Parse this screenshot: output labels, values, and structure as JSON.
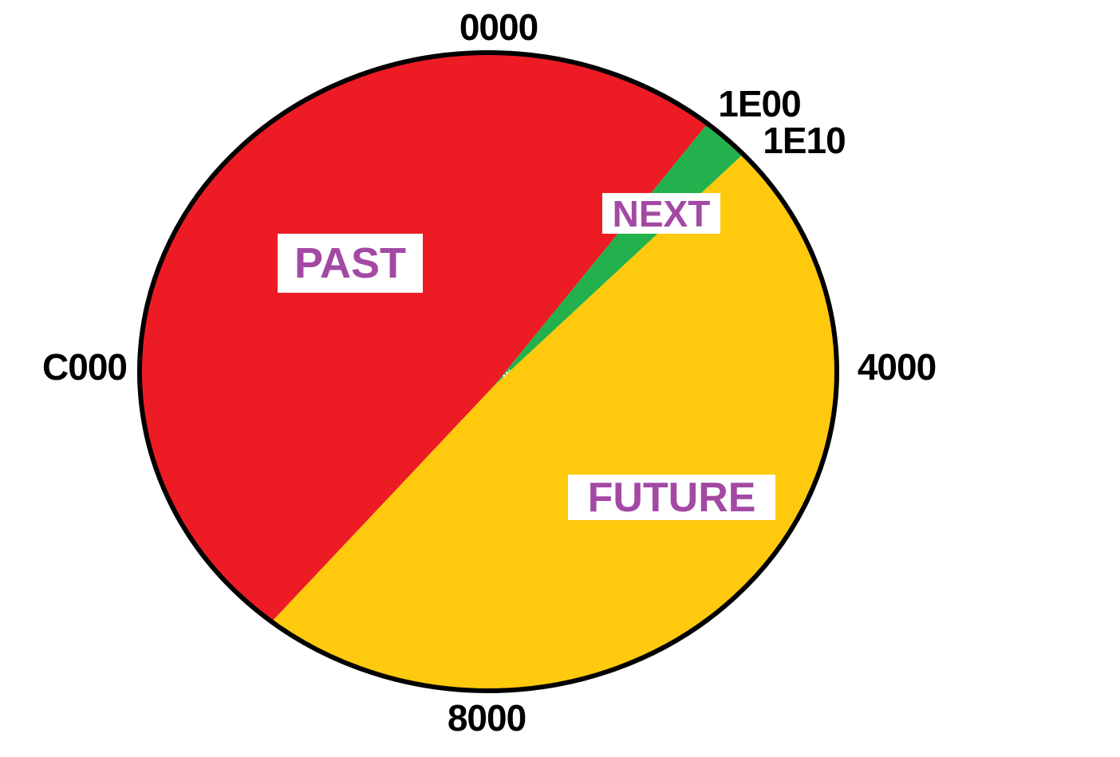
{
  "page": {
    "background": "#FFFFFF"
  },
  "chart_data": {
    "type": "pie",
    "title": "",
    "shape": "ellipse",
    "legend": "none",
    "angle_convention": "degrees clockwise from top (12 o'clock)",
    "segments": [
      {
        "label": "PAST",
        "color": "#ED1C24",
        "start_angle": 218.4,
        "end_angle": 399.0
      },
      {
        "label": "NEXT",
        "color": "#22B14C",
        "start_angle": 39.0,
        "end_angle": 47.0
      },
      {
        "label": "FUTURE",
        "color": "#FFC90E",
        "start_angle": 47.0,
        "end_angle": 218.4
      }
    ],
    "tick_labels": [
      {
        "text": "0000",
        "angle": 0
      },
      {
        "text": "1E00",
        "angle": 39
      },
      {
        "text": "1E10",
        "angle": 47
      },
      {
        "text": "4000",
        "angle": 90
      },
      {
        "text": "8000",
        "angle": 180
      },
      {
        "text": "C000",
        "angle": 270
      }
    ],
    "outline_color": "#000000",
    "tick_label_color": "#000000",
    "region_label_color": "#A349A4",
    "region_label_background": "#FFFFFF"
  },
  "ticks": {
    "top": "0000",
    "upper_right_1": "1E00",
    "upper_right_2": "1E10",
    "right": "4000",
    "bottom": "8000",
    "left": "C000"
  },
  "regions": {
    "past": "PAST",
    "next": "NEXT",
    "future": "FUTURE"
  }
}
